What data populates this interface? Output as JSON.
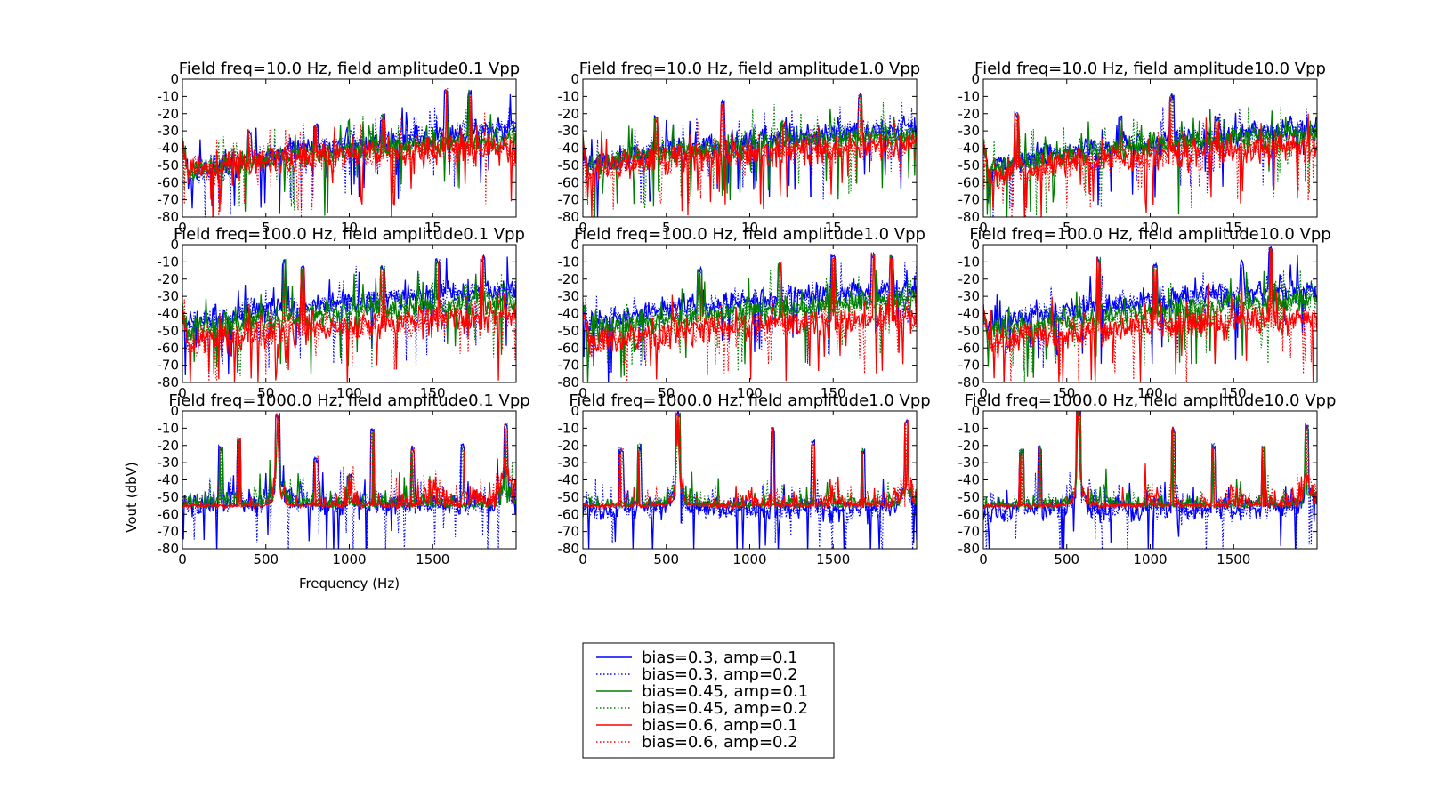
{
  "figure": {
    "ylabel": "Vout (dbV)",
    "xlabel": "Frequency (Hz)",
    "legend": [
      {
        "label": "bias=0.3, amp=0.1",
        "color": "#0000ff",
        "style": "solid"
      },
      {
        "label": "bias=0.3, amp=0.2",
        "color": "#0000ff",
        "style": "dotted"
      },
      {
        "label": "bias=0.45, amp=0.1",
        "color": "#008000",
        "style": "solid"
      },
      {
        "label": "bias=0.45, amp=0.2",
        "color": "#008000",
        "style": "dotted"
      },
      {
        "label": "bias=0.6, amp=0.1",
        "color": "#ff0000",
        "style": "solid"
      },
      {
        "label": "bias=0.6, amp=0.2",
        "color": "#ff0000",
        "style": "dotted"
      }
    ],
    "legend_placement": "bottom-center"
  },
  "chart_data": [
    {
      "type": "line",
      "title": "Field freq=10.0 Hz, field amplitude0.1 Vpp",
      "xlim": [
        0,
        20
      ],
      "ylim": [
        -80,
        0
      ],
      "xticks": [
        "0",
        "5",
        "10",
        "15"
      ],
      "yticks": [
        "0",
        "-10",
        "-20",
        "-30",
        "-40",
        "-50",
        "-60",
        "-70",
        "-80"
      ],
      "levels": {
        "blue": [
          -62,
          -28
        ],
        "green": [
          -58,
          -34
        ],
        "red": [
          -55,
          -40
        ]
      },
      "peaks": [
        [
          4,
          -33
        ],
        [
          8,
          -29
        ],
        [
          12,
          -24
        ],
        [
          15.8,
          -9
        ],
        [
          17.2,
          -10
        ]
      ]
    },
    {
      "type": "line",
      "title": "Field freq=10.0 Hz, field amplitude1.0 Vpp",
      "xlim": [
        0,
        20
      ],
      "ylim": [
        -80,
        0
      ],
      "xticks": [
        "0",
        "5",
        "10",
        "15"
      ],
      "yticks": [
        "0",
        "-10",
        "-20",
        "-30",
        "-40",
        "-50",
        "-60",
        "-70",
        "-80"
      ],
      "levels": {
        "blue": [
          -55,
          -28
        ],
        "green": [
          -55,
          -31
        ],
        "red": [
          -55,
          -38
        ]
      },
      "peaks": [
        [
          4.4,
          -25
        ],
        [
          8.4,
          -16
        ],
        [
          16.6,
          -11
        ],
        [
          12,
          -28
        ]
      ]
    },
    {
      "type": "line",
      "title": "Field freq=10.0 Hz, field amplitude10.0 Vpp",
      "xlim": [
        0,
        20
      ],
      "ylim": [
        -80,
        0
      ],
      "xticks": [
        "0",
        "5",
        "10",
        "15"
      ],
      "yticks": [
        "0",
        "-10",
        "-20",
        "-30",
        "-40",
        "-50",
        "-60",
        "-70",
        "-80"
      ],
      "levels": {
        "blue": [
          -58,
          -28
        ],
        "green": [
          -58,
          -31
        ],
        "red": [
          -60,
          -38
        ]
      },
      "peaks": [
        [
          2,
          -23
        ],
        [
          8.2,
          -25
        ],
        [
          11.3,
          -12
        ],
        [
          14,
          -25
        ]
      ]
    },
    {
      "type": "line",
      "title": "Field freq=100.0 Hz, field amplitude0.1 Vpp",
      "xlim": [
        0,
        200
      ],
      "ylim": [
        -80,
        0
      ],
      "xticks": [
        "0",
        "50",
        "100",
        "150"
      ],
      "yticks": [
        "0",
        "-10",
        "-20",
        "-30",
        "-40",
        "-50",
        "-60",
        "-70",
        "-80"
      ],
      "levels": {
        "blue": [
          -50,
          -26
        ],
        "green": [
          -55,
          -32
        ],
        "red": [
          -60,
          -42
        ]
      },
      "peaks": [
        [
          61,
          -12
        ],
        [
          72,
          -16
        ],
        [
          120,
          -16
        ],
        [
          153,
          -12
        ],
        [
          180,
          -10
        ]
      ]
    },
    {
      "type": "line",
      "title": "Field freq=100.0 Hz, field amplitude1.0 Vpp",
      "xlim": [
        0,
        200
      ],
      "ylim": [
        -80,
        0
      ],
      "xticks": [
        "0",
        "50",
        "100",
        "150"
      ],
      "yticks": [
        "0",
        "-10",
        "-20",
        "-30",
        "-40",
        "-50",
        "-60",
        "-70",
        "-80"
      ],
      "levels": {
        "blue": [
          -50,
          -26
        ],
        "green": [
          -55,
          -32
        ],
        "red": [
          -60,
          -42
        ]
      },
      "peaks": [
        [
          70,
          -17
        ],
        [
          118,
          -14
        ],
        [
          150,
          -10
        ],
        [
          174,
          -8
        ],
        [
          185,
          -10
        ]
      ]
    },
    {
      "type": "line",
      "title": "Field freq=100.0 Hz, field amplitude10.0 Vpp",
      "xlim": [
        0,
        200
      ],
      "ylim": [
        -80,
        0
      ],
      "xticks": [
        "0",
        "50",
        "100",
        "150"
      ],
      "yticks": [
        "0",
        "-10",
        "-20",
        "-30",
        "-40",
        "-50",
        "-60",
        "-70",
        "-80"
      ],
      "levels": {
        "blue": [
          -50,
          -26
        ],
        "green": [
          -55,
          -32
        ],
        "red": [
          -60,
          -42
        ]
      },
      "peaks": [
        [
          69,
          -11
        ],
        [
          103,
          -15
        ],
        [
          155,
          -13
        ],
        [
          172,
          -5
        ]
      ]
    },
    {
      "type": "line",
      "title": "Field freq=1000.0 Hz, field amplitude0.1 Vpp",
      "xlim": [
        0,
        2000
      ],
      "ylim": [
        -80,
        0
      ],
      "xticks": [
        "0",
        "500",
        "1000",
        "1500"
      ],
      "yticks": [
        "0",
        "-10",
        "-20",
        "-30",
        "-40",
        "-50",
        "-60",
        "-70",
        "-80"
      ],
      "xlabel": "Frequency (Hz)",
      "levels": {
        "blue": [
          -54,
          -54
        ],
        "green": [
          -55,
          -55
        ],
        "red": [
          -68,
          -50
        ]
      },
      "peaks": [
        [
          570,
          -5
        ],
        [
          1140,
          -13
        ],
        [
          1940,
          -11
        ],
        [
          230,
          -24
        ],
        [
          340,
          -19
        ],
        [
          1380,
          -24
        ],
        [
          1680,
          -23
        ],
        [
          800,
          -30
        ],
        [
          1000,
          -40
        ]
      ]
    },
    {
      "type": "line",
      "title": "Field freq=1000.0 Hz, field amplitude1.0 Vpp",
      "xlim": [
        0,
        2000
      ],
      "ylim": [
        -80,
        0
      ],
      "xticks": [
        "0",
        "500",
        "1000",
        "1500"
      ],
      "yticks": [
        "0",
        "-10",
        "-20",
        "-30",
        "-40",
        "-50",
        "-60",
        "-70",
        "-80"
      ],
      "levels": {
        "blue": [
          -58,
          -56
        ],
        "green": [
          -57,
          -55
        ],
        "red": [
          -65,
          -55
        ]
      },
      "peaks": [
        [
          570,
          -4
        ],
        [
          1140,
          -13
        ],
        [
          1940,
          -9
        ],
        [
          230,
          -25
        ],
        [
          340,
          -23
        ],
        [
          1380,
          -21
        ],
        [
          1680,
          -25
        ]
      ]
    },
    {
      "type": "line",
      "title": "Field freq=1000.0 Hz, field amplitude10.0 Vpp",
      "xlim": [
        0,
        2000
      ],
      "ylim": [
        -80,
        0
      ],
      "xticks": [
        "0",
        "500",
        "1000",
        "1500"
      ],
      "yticks": [
        "0",
        "-10",
        "-20",
        "-30",
        "-40",
        "-50",
        "-60",
        "-70",
        "-80"
      ],
      "levels": {
        "blue": [
          -58,
          -56
        ],
        "green": [
          -57,
          -55
        ],
        "red": [
          -65,
          -55
        ]
      },
      "peaks": [
        [
          570,
          -3
        ],
        [
          1140,
          -13
        ],
        [
          1940,
          -11
        ],
        [
          230,
          -26
        ],
        [
          340,
          -23
        ],
        [
          1380,
          -23
        ],
        [
          1680,
          -24
        ]
      ]
    }
  ]
}
